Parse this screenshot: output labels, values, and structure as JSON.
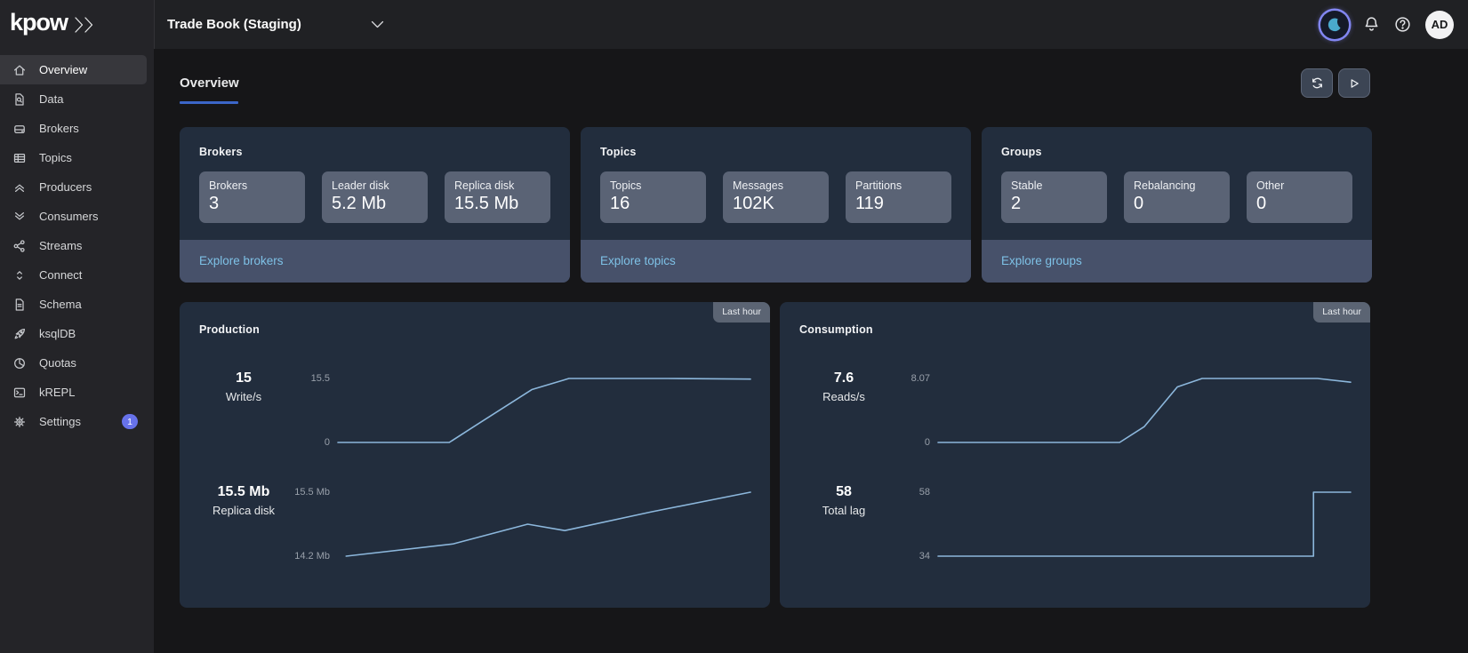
{
  "topbar": {
    "logo": "kpow",
    "logo_icon": "double-chevron-right",
    "environment": "Trade Book (Staging)",
    "env_caret_icon": "chevron-down",
    "icons": [
      "moon-theme-toggle",
      "bell-notifications",
      "help-question",
      "avatar"
    ],
    "avatar": "AD"
  },
  "sidebar": {
    "items": [
      {
        "id": "overview",
        "label": "Overview",
        "icon": "home",
        "active": true
      },
      {
        "id": "data",
        "label": "Data",
        "icon": "document-search",
        "active": false
      },
      {
        "id": "brokers",
        "label": "Brokers",
        "icon": "drive",
        "active": false
      },
      {
        "id": "topics",
        "label": "Topics",
        "icon": "table",
        "active": false
      },
      {
        "id": "producers",
        "label": "Producers",
        "icon": "chevrons-up",
        "active": false
      },
      {
        "id": "consumers",
        "label": "Consumers",
        "icon": "chevrons-down",
        "active": false
      },
      {
        "id": "streams",
        "label": "Streams",
        "icon": "share",
        "active": false
      },
      {
        "id": "connect",
        "label": "Connect",
        "icon": "chevrons-updown",
        "active": false
      },
      {
        "id": "schema",
        "label": "Schema",
        "icon": "document",
        "active": false
      },
      {
        "id": "ksqldb",
        "label": "ksqlDB",
        "icon": "rocket",
        "active": false
      },
      {
        "id": "quotas",
        "label": "Quotas",
        "icon": "pie",
        "active": false
      },
      {
        "id": "krepl",
        "label": "kREPL",
        "icon": "terminal",
        "active": false
      },
      {
        "id": "settings",
        "label": "Settings",
        "icon": "gear",
        "active": false,
        "badge": "1"
      }
    ]
  },
  "header": {
    "title": "Overview",
    "actions": [
      {
        "id": "refresh",
        "icon": "refresh"
      },
      {
        "id": "run",
        "icon": "play"
      }
    ]
  },
  "stat_cards": [
    {
      "title": "Brokers",
      "link": "Explore brokers",
      "tiles": [
        {
          "label": "Brokers",
          "value": "3"
        },
        {
          "label": "Leader disk",
          "value": "5.2 Mb"
        },
        {
          "label": "Replica disk",
          "value": "15.5 Mb"
        }
      ]
    },
    {
      "title": "Topics",
      "link": "Explore topics",
      "tiles": [
        {
          "label": "Topics",
          "value": "16"
        },
        {
          "label": "Messages",
          "value": "102K"
        },
        {
          "label": "Partitions",
          "value": "119"
        }
      ]
    },
    {
      "title": "Groups",
      "link": "Explore groups",
      "tiles": [
        {
          "label": "Stable",
          "value": "2"
        },
        {
          "label": "Rebalancing",
          "value": "0"
        },
        {
          "label": "Other",
          "value": "0"
        }
      ]
    }
  ],
  "chart_data": [
    {
      "type": "line",
      "title": "Production",
      "time_range": "Last hour",
      "legend_position": "none",
      "grid": false,
      "series": [
        {
          "name": "Write/s",
          "current": "15",
          "ymax_label": "15.5",
          "ymin_label": "0",
          "ylim": [
            0,
            15.5
          ],
          "points": [
            [
              0,
              0
            ],
            [
              27,
              0
            ],
            [
              34,
              4.5
            ],
            [
              47,
              12.8
            ],
            [
              56,
              15.5
            ],
            [
              80,
              15.5
            ],
            [
              100,
              15.35
            ]
          ]
        },
        {
          "name": "Replica disk",
          "current": "15.5 Mb",
          "ymax_label": "15.5 Mb",
          "ymin_label": "14.2 Mb",
          "ylim": [
            14.2,
            15.5
          ],
          "points": [
            [
              2,
              14.2
            ],
            [
              28,
              14.45
            ],
            [
              46,
              14.85
            ],
            [
              55,
              14.72
            ],
            [
              76,
              15.1
            ],
            [
              100,
              15.5
            ]
          ]
        }
      ]
    },
    {
      "type": "line",
      "title": "Consumption",
      "time_range": "Last hour",
      "legend_position": "none",
      "grid": false,
      "series": [
        {
          "name": "Reads/s",
          "current": "7.6",
          "ymax_label": "8.07",
          "ymin_label": "0",
          "ylim": [
            0,
            8.07
          ],
          "points": [
            [
              0,
              0
            ],
            [
              44,
              0
            ],
            [
              50,
              2
            ],
            [
              58,
              7
            ],
            [
              64,
              8.07
            ],
            [
              92,
              8.07
            ],
            [
              100,
              7.6
            ]
          ]
        },
        {
          "name": "Total lag",
          "current": "58",
          "ymax_label": "58",
          "ymin_label": "34",
          "ylim": [
            34,
            58
          ],
          "points": [
            [
              0,
              34
            ],
            [
              91,
              34
            ],
            [
              91,
              58
            ],
            [
              100,
              58
            ]
          ]
        }
      ]
    }
  ],
  "colors": {
    "accent_underline": "#3c66c8",
    "link": "#7ec1e6",
    "sparkline": "#8cb7dc",
    "badge": "#6772ea",
    "card_bg": "#222d3d",
    "tile_bg": "#5a6375",
    "footer_bg": "#47516a"
  }
}
